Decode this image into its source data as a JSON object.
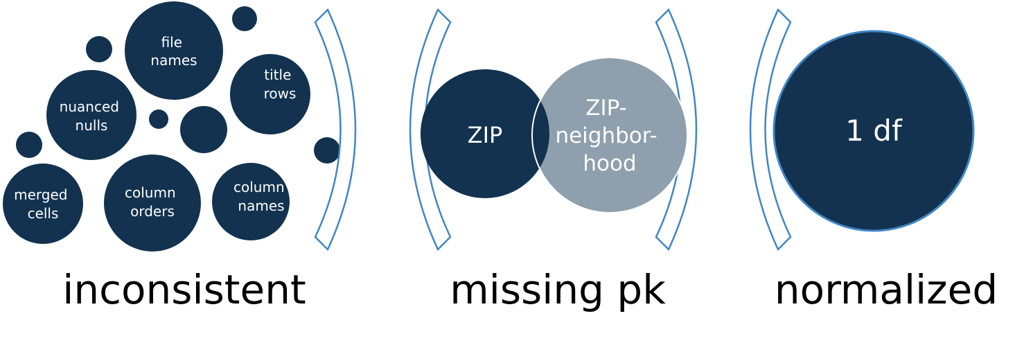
{
  "colors": {
    "dark_navy": "#12324f",
    "gray_blue": "#8e9fad",
    "bracket_blue": "#3f86c6",
    "text_on_circle": "#ffffff",
    "caption_text": "#000000"
  },
  "section1": {
    "caption": "inconsistent",
    "bubbles": {
      "file_names": [
        "file",
        "names"
      ],
      "title_rows": [
        "title",
        "rows"
      ],
      "nuanced_nulls": [
        "nuanced",
        "nulls"
      ],
      "merged_cells": [
        "merged",
        "cells"
      ],
      "column_orders": [
        "column",
        "orders"
      ],
      "column_names": [
        "column",
        "names"
      ]
    }
  },
  "section2": {
    "caption": "missing pk",
    "left_circle": "ZIP",
    "right_circle": [
      "ZIP-",
      "neighbor-",
      "hood"
    ]
  },
  "section3": {
    "caption": "normalized",
    "circle": "1 df"
  },
  "icons": {
    "bracket_1": "right-parenthesis-bracket-icon",
    "bracket_2": "left-parenthesis-bracket-icon",
    "bracket_3": "right-parenthesis-bracket-icon",
    "bracket_4": "left-parenthesis-bracket-icon"
  }
}
